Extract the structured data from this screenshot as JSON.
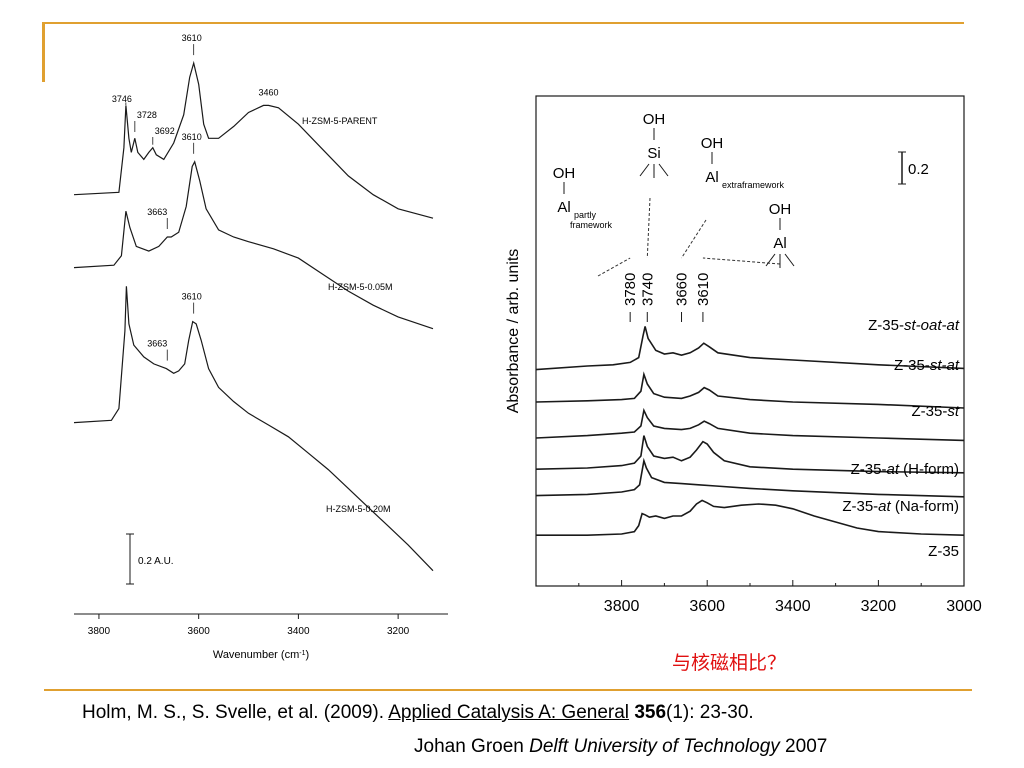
{
  "chart_data": [
    {
      "type": "line",
      "xlabel": "Wavenumber (cm",
      "xlabel_sup": "-1",
      "ylabel": "",
      "xlim": [
        3850,
        3100
      ],
      "x_ticks": [
        3800,
        3600,
        3400,
        3200
      ],
      "scale_bar": "0.2 A.U.",
      "series": [
        {
          "name": "H-ZSM-5-PARENT",
          "points": [
            [
              3850,
              0.78
            ],
            [
              3760,
              0.79
            ],
            [
              3750,
              0.98
            ],
            [
              3746,
              1.16
            ],
            [
              3740,
              1.02
            ],
            [
              3735,
              0.96
            ],
            [
              3728,
              1.02
            ],
            [
              3722,
              0.96
            ],
            [
              3710,
              0.93
            ],
            [
              3700,
              0.96
            ],
            [
              3692,
              0.98
            ],
            [
              3685,
              0.95
            ],
            [
              3670,
              0.93
            ],
            [
              3650,
              1.0
            ],
            [
              3630,
              1.12
            ],
            [
              3618,
              1.28
            ],
            [
              3610,
              1.34
            ],
            [
              3600,
              1.25
            ],
            [
              3590,
              1.08
            ],
            [
              3580,
              1.02
            ],
            [
              3560,
              1.02
            ],
            [
              3530,
              1.07
            ],
            [
              3500,
              1.13
            ],
            [
              3470,
              1.16
            ],
            [
              3460,
              1.16
            ],
            [
              3440,
              1.15
            ],
            [
              3400,
              1.08
            ],
            [
              3350,
              0.97
            ],
            [
              3300,
              0.86
            ],
            [
              3250,
              0.78
            ],
            [
              3200,
              0.72
            ],
            [
              3130,
              0.68
            ]
          ],
          "labels": [
            {
              "x": 3746,
              "text": "3746"
            },
            {
              "x": 3728,
              "text": "3728"
            },
            {
              "x": 3692,
              "text": "3692"
            },
            {
              "x": 3610,
              "text": "3610"
            },
            {
              "x": 3460,
              "text": "3460"
            }
          ]
        },
        {
          "name": "H-ZSM-5-0.05M",
          "points": [
            [
              3850,
              0.47
            ],
            [
              3770,
              0.48
            ],
            [
              3755,
              0.52
            ],
            [
              3746,
              0.71
            ],
            [
              3738,
              0.64
            ],
            [
              3725,
              0.56
            ],
            [
              3700,
              0.54
            ],
            [
              3680,
              0.56
            ],
            [
              3663,
              0.6
            ],
            [
              3655,
              0.6
            ],
            [
              3640,
              0.62
            ],
            [
              3625,
              0.73
            ],
            [
              3613,
              0.9
            ],
            [
              3608,
              0.92
            ],
            [
              3598,
              0.84
            ],
            [
              3585,
              0.72
            ],
            [
              3560,
              0.63
            ],
            [
              3530,
              0.6
            ],
            [
              3500,
              0.58
            ],
            [
              3450,
              0.55
            ],
            [
              3400,
              0.51
            ],
            [
              3350,
              0.44
            ],
            [
              3300,
              0.37
            ],
            [
              3250,
              0.31
            ],
            [
              3200,
              0.26
            ],
            [
              3130,
              0.21
            ]
          ],
          "labels": [
            {
              "x": 3610,
              "text": "3610"
            },
            {
              "x": 3663,
              "text": "3663"
            }
          ]
        },
        {
          "name": "H-ZSM-5-0.20M",
          "points": [
            [
              3850,
              -0.19
            ],
            [
              3775,
              -0.18
            ],
            [
              3760,
              -0.13
            ],
            [
              3748,
              0.2
            ],
            [
              3745,
              0.39
            ],
            [
              3740,
              0.23
            ],
            [
              3730,
              0.14
            ],
            [
              3710,
              0.09
            ],
            [
              3690,
              0.06
            ],
            [
              3665,
              0.04
            ],
            [
              3650,
              0.02
            ],
            [
              3640,
              0.03
            ],
            [
              3628,
              0.06
            ],
            [
              3620,
              0.16
            ],
            [
              3612,
              0.24
            ],
            [
              3605,
              0.23
            ],
            [
              3595,
              0.16
            ],
            [
              3580,
              0.04
            ],
            [
              3560,
              -0.04
            ],
            [
              3530,
              -0.1
            ],
            [
              3500,
              -0.15
            ],
            [
              3460,
              -0.2
            ],
            [
              3420,
              -0.25
            ],
            [
              3380,
              -0.32
            ],
            [
              3340,
              -0.39
            ],
            [
              3300,
              -0.47
            ],
            [
              3260,
              -0.55
            ],
            [
              3220,
              -0.63
            ],
            [
              3180,
              -0.71
            ],
            [
              3130,
              -0.82
            ]
          ],
          "labels": [
            {
              "x": 3610,
              "text": "3610"
            },
            {
              "x": 3663,
              "text": "3663"
            }
          ]
        }
      ]
    },
    {
      "type": "line",
      "xlabel": "",
      "ylabel": "Absorbance / arb. units",
      "xlim": [
        4000,
        3000
      ],
      "x_ticks": [
        3800,
        3600,
        3400,
        3200,
        3000
      ],
      "scale_bar": "0.2",
      "annotations": [
        {
          "x": 3780,
          "text": "3780",
          "group": {
            "top": "OH",
            "dash": "I",
            "atom": "Al",
            "sub": "partly",
            "sub2": "framework"
          }
        },
        {
          "x": 3740,
          "text": "3740",
          "group": {
            "top": "OH",
            "dash": "I",
            "atom": "Si"
          }
        },
        {
          "x": 3660,
          "text": "3660",
          "group": {
            "top": "OH",
            "dash": "I",
            "atom": "Al",
            "sub": "extraframework"
          }
        },
        {
          "x": 3610,
          "text": "3610",
          "group": {
            "top": "OH",
            "dash": "I",
            "atom": "Al"
          }
        }
      ],
      "series": [
        {
          "name_plain": "Z-35-",
          "name_italic": "st-oat-at",
          "name_tail": "",
          "points": [
            [
              4000,
              1.52
            ],
            [
              3880,
              1.55
            ],
            [
              3820,
              1.56
            ],
            [
              3780,
              1.58
            ],
            [
              3760,
              1.62
            ],
            [
              3750,
              1.8
            ],
            [
              3745,
              1.88
            ],
            [
              3738,
              1.78
            ],
            [
              3720,
              1.68
            ],
            [
              3700,
              1.65
            ],
            [
              3680,
              1.66
            ],
            [
              3660,
              1.64
            ],
            [
              3640,
              1.66
            ],
            [
              3620,
              1.7
            ],
            [
              3608,
              1.74
            ],
            [
              3595,
              1.71
            ],
            [
              3575,
              1.66
            ],
            [
              3500,
              1.62
            ],
            [
              3400,
              1.6
            ],
            [
              3200,
              1.56
            ],
            [
              3000,
              1.53
            ]
          ]
        },
        {
          "name_plain": "Z-35-",
          "name_italic": "st-at",
          "name_tail": "",
          "points": [
            [
              4000,
              1.25
            ],
            [
              3880,
              1.26
            ],
            [
              3800,
              1.27
            ],
            [
              3770,
              1.28
            ],
            [
              3755,
              1.34
            ],
            [
              3748,
              1.48
            ],
            [
              3740,
              1.4
            ],
            [
              3725,
              1.32
            ],
            [
              3700,
              1.29
            ],
            [
              3660,
              1.28
            ],
            [
              3640,
              1.3
            ],
            [
              3620,
              1.33
            ],
            [
              3607,
              1.37
            ],
            [
              3595,
              1.35
            ],
            [
              3575,
              1.3
            ],
            [
              3500,
              1.27
            ],
            [
              3400,
              1.25
            ],
            [
              3200,
              1.23
            ],
            [
              3000,
              1.2
            ]
          ]
        },
        {
          "name_plain": "Z-35-",
          "name_italic": "st",
          "name_tail": "",
          "points": [
            [
              4000,
              0.95
            ],
            [
              3880,
              0.97
            ],
            [
              3800,
              0.99
            ],
            [
              3770,
              1.0
            ],
            [
              3755,
              1.05
            ],
            [
              3748,
              1.18
            ],
            [
              3740,
              1.12
            ],
            [
              3725,
              1.05
            ],
            [
              3700,
              1.03
            ],
            [
              3660,
              1.02
            ],
            [
              3640,
              1.03
            ],
            [
              3620,
              1.06
            ],
            [
              3607,
              1.09
            ],
            [
              3595,
              1.07
            ],
            [
              3575,
              1.03
            ],
            [
              3500,
              0.99
            ],
            [
              3400,
              0.97
            ],
            [
              3200,
              0.95
            ],
            [
              3000,
              0.93
            ]
          ]
        },
        {
          "name_plain": "Z-35-",
          "name_italic": "at",
          "name_tail": " (H-form)",
          "points": [
            [
              4000,
              0.69
            ],
            [
              3880,
              0.7
            ],
            [
              3800,
              0.72
            ],
            [
              3770,
              0.74
            ],
            [
              3755,
              0.8
            ],
            [
              3748,
              0.97
            ],
            [
              3740,
              0.88
            ],
            [
              3725,
              0.8
            ],
            [
              3700,
              0.78
            ],
            [
              3680,
              0.79
            ],
            [
              3660,
              0.76
            ],
            [
              3640,
              0.79
            ],
            [
              3625,
              0.85
            ],
            [
              3610,
              0.92
            ],
            [
              3600,
              0.9
            ],
            [
              3585,
              0.83
            ],
            [
              3560,
              0.76
            ],
            [
              3500,
              0.71
            ],
            [
              3400,
              0.69
            ],
            [
              3200,
              0.67
            ],
            [
              3000,
              0.66
            ]
          ]
        },
        {
          "name_plain": "Z-35-",
          "name_italic": "at",
          "name_tail": " (Na-form)",
          "points": [
            [
              4000,
              0.47
            ],
            [
              3880,
              0.48
            ],
            [
              3800,
              0.5
            ],
            [
              3770,
              0.52
            ],
            [
              3758,
              0.56
            ],
            [
              3748,
              0.76
            ],
            [
              3742,
              0.7
            ],
            [
              3730,
              0.62
            ],
            [
              3700,
              0.58
            ],
            [
              3660,
              0.57
            ],
            [
              3620,
              0.56
            ],
            [
              3580,
              0.55
            ],
            [
              3500,
              0.53
            ],
            [
              3400,
              0.51
            ],
            [
              3200,
              0.48
            ],
            [
              3000,
              0.46
            ]
          ]
        },
        {
          "name_plain": "Z-35",
          "name_italic": "",
          "name_tail": "",
          "points": [
            [
              4000,
              0.14
            ],
            [
              3880,
              0.14
            ],
            [
              3800,
              0.15
            ],
            [
              3770,
              0.17
            ],
            [
              3760,
              0.22
            ],
            [
              3752,
              0.32
            ],
            [
              3745,
              0.31
            ],
            [
              3735,
              0.29
            ],
            [
              3720,
              0.3
            ],
            [
              3700,
              0.28
            ],
            [
              3680,
              0.3
            ],
            [
              3660,
              0.3
            ],
            [
              3640,
              0.34
            ],
            [
              3625,
              0.4
            ],
            [
              3612,
              0.43
            ],
            [
              3600,
              0.41
            ],
            [
              3585,
              0.38
            ],
            [
              3560,
              0.37
            ],
            [
              3520,
              0.39
            ],
            [
              3480,
              0.4
            ],
            [
              3440,
              0.39
            ],
            [
              3400,
              0.36
            ],
            [
              3350,
              0.3
            ],
            [
              3300,
              0.25
            ],
            [
              3250,
              0.2
            ],
            [
              3200,
              0.17
            ],
            [
              3100,
              0.15
            ],
            [
              3000,
              0.14
            ]
          ]
        }
      ]
    }
  ],
  "note": "与核磁相比？",
  "citation": {
    "authors": "Holm, M. S., S. Svelle, et al. (2009). ",
    "journal": "Applied Catalysis A: General",
    "volume": "356",
    "pages": "(1): 23-30.",
    "line2_plain": "Johan Groen ",
    "line2_italic": "Delft University of Technology",
    "line2_year": " 2007"
  },
  "colors": {
    "accent": "#e0a030",
    "note": "#e01010",
    "line": "#1a1a1a"
  }
}
